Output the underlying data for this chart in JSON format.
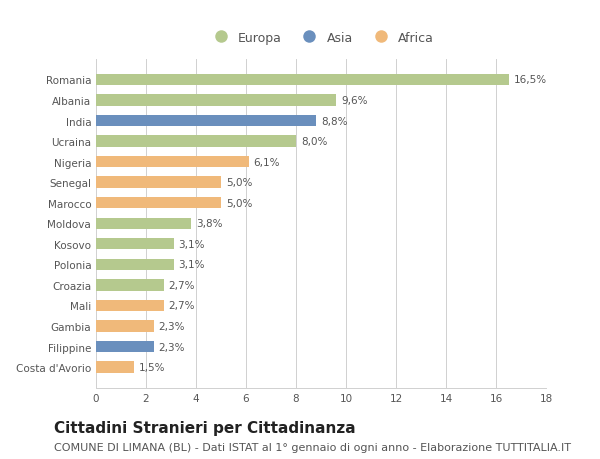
{
  "countries": [
    "Romania",
    "Albania",
    "India",
    "Ucraina",
    "Nigeria",
    "Senegal",
    "Marocco",
    "Moldova",
    "Kosovo",
    "Polonia",
    "Croazia",
    "Mali",
    "Gambia",
    "Filippine",
    "Costa d'Avorio"
  ],
  "values": [
    16.5,
    9.6,
    8.8,
    8.0,
    6.1,
    5.0,
    5.0,
    3.8,
    3.1,
    3.1,
    2.7,
    2.7,
    2.3,
    2.3,
    1.5
  ],
  "labels": [
    "16,5%",
    "9,6%",
    "8,8%",
    "8,0%",
    "6,1%",
    "5,0%",
    "5,0%",
    "3,8%",
    "3,1%",
    "3,1%",
    "2,7%",
    "2,7%",
    "2,3%",
    "2,3%",
    "1,5%"
  ],
  "colors": [
    "#b5c98e",
    "#b5c98e",
    "#6a8fbd",
    "#b5c98e",
    "#f0b97a",
    "#f0b97a",
    "#f0b97a",
    "#b5c98e",
    "#b5c98e",
    "#b5c98e",
    "#b5c98e",
    "#f0b97a",
    "#f0b97a",
    "#6a8fbd",
    "#f0b97a"
  ],
  "legend_labels": [
    "Europa",
    "Asia",
    "Africa"
  ],
  "legend_colors": [
    "#b5c98e",
    "#6a8fbd",
    "#f0b97a"
  ],
  "xlim": [
    0,
    18
  ],
  "xticks": [
    0,
    2,
    4,
    6,
    8,
    10,
    12,
    14,
    16,
    18
  ],
  "title": "Cittadini Stranieri per Cittadinanza",
  "subtitle": "COMUNE DI LIMANA (BL) - Dati ISTAT al 1° gennaio di ogni anno - Elaborazione TUTTITALIA.IT",
  "background_color": "#ffffff",
  "grid_color": "#d0d0d0",
  "bar_height": 0.55,
  "title_fontsize": 11,
  "subtitle_fontsize": 8,
  "label_fontsize": 7.5,
  "tick_fontsize": 7.5,
  "legend_fontsize": 9
}
